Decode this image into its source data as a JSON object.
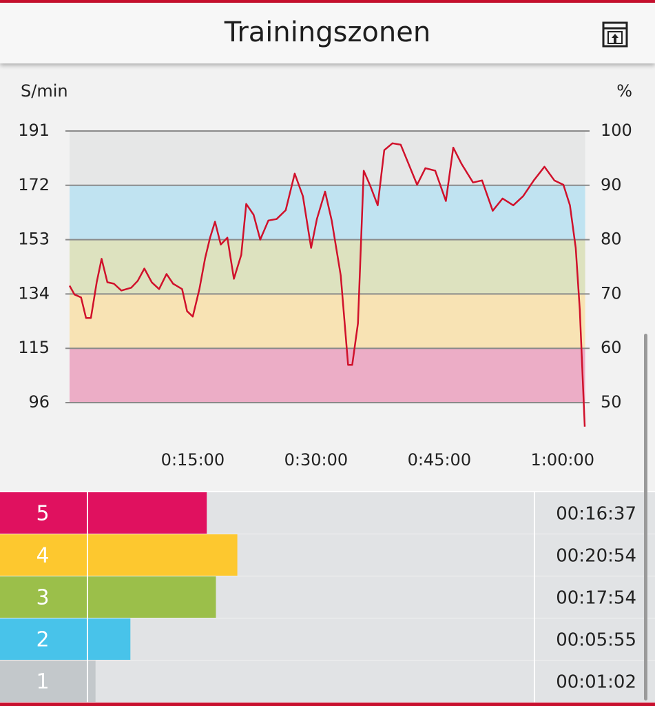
{
  "header": {
    "title": "Trainingszonen"
  },
  "chart_data": [
    {
      "type": "line",
      "y_label": "S/min",
      "y2_label": "%",
      "x": [
        0,
        36,
        84,
        120,
        156,
        198,
        234,
        276,
        324,
        378,
        450,
        498,
        546,
        600,
        654,
        708,
        756,
        822,
        858,
        900,
        948,
        990,
        1026,
        1062,
        1104,
        1152,
        1200,
        1254,
        1290,
        1344,
        1392,
        1452,
        1512,
        1578,
        1644,
        1704,
        1764,
        1806,
        1866,
        1914,
        1980,
        2034,
        2064,
        2106,
        2148,
        2196,
        2250,
        2298,
        2358,
        2418,
        2484,
        2538,
        2598,
        2670,
        2748,
        2802,
        2862,
        2946,
        3012,
        3090,
        3162,
        3240,
        3312,
        3390,
        3468,
        3540,
        3606,
        3654,
        3696,
        3726,
        3762
      ],
      "values": [
        136.9,
        133.8,
        132.8,
        125.6,
        125.6,
        138.1,
        146.3,
        138.1,
        137.6,
        135.2,
        136.2,
        138.6,
        142.9,
        138.1,
        135.7,
        141.0,
        137.6,
        135.7,
        128.0,
        126.1,
        135.7,
        146.5,
        153.7,
        159.3,
        151.3,
        153.7,
        139.3,
        147.7,
        165.5,
        161.7,
        153.0,
        159.7,
        160.2,
        163.3,
        176.1,
        168.2,
        150.1,
        160.2,
        169.8,
        159.7,
        140.5,
        109.2,
        109.2,
        123.7,
        177.1,
        171.8,
        165.0,
        184.3,
        186.7,
        186.2,
        178.5,
        172.2,
        178.0,
        177.1,
        166.5,
        185.2,
        179.5,
        173.0,
        173.7,
        163.1,
        167.4,
        165.0,
        168.2,
        173.7,
        178.5,
        173.7,
        172.2,
        165.0,
        150.1,
        128.5,
        87.6
      ],
      "color": "#d0112b",
      "xlim": [
        0,
        3765
      ],
      "xticks": [
        {
          "value": 900,
          "label": "0:15:00"
        },
        {
          "value": 1800,
          "label": "0:30:00"
        },
        {
          "value": 2700,
          "label": "0:45:00"
        },
        {
          "value": 3600,
          "label": "1:00:00"
        }
      ],
      "ylim": [
        96,
        191
      ],
      "yticks": [
        191,
        172,
        153,
        134,
        115,
        96
      ],
      "y2lim": [
        50,
        100
      ],
      "y2ticks": [
        100,
        90,
        80,
        70,
        60,
        50
      ],
      "band_colors": [
        "#ecadc6",
        "#f8e3b4",
        "#dde2bf",
        "#c0e3f1",
        "#e6e7e7"
      ],
      "grid": true
    },
    {
      "type": "bar",
      "orientation": "horizontal",
      "categories": [
        "5",
        "4",
        "3",
        "2",
        "1"
      ],
      "values": [
        997,
        1254,
        1074,
        355,
        62
      ],
      "value_labels": [
        "00:16:37",
        "00:20:54",
        "00:17:54",
        "00:05:55",
        "00:01:02"
      ],
      "colors": [
        "#e0115f",
        "#fdc82f",
        "#9bbf4a",
        "#48c3ea",
        "#c3c8cb"
      ],
      "xlim": [
        0,
        3746
      ]
    }
  ]
}
